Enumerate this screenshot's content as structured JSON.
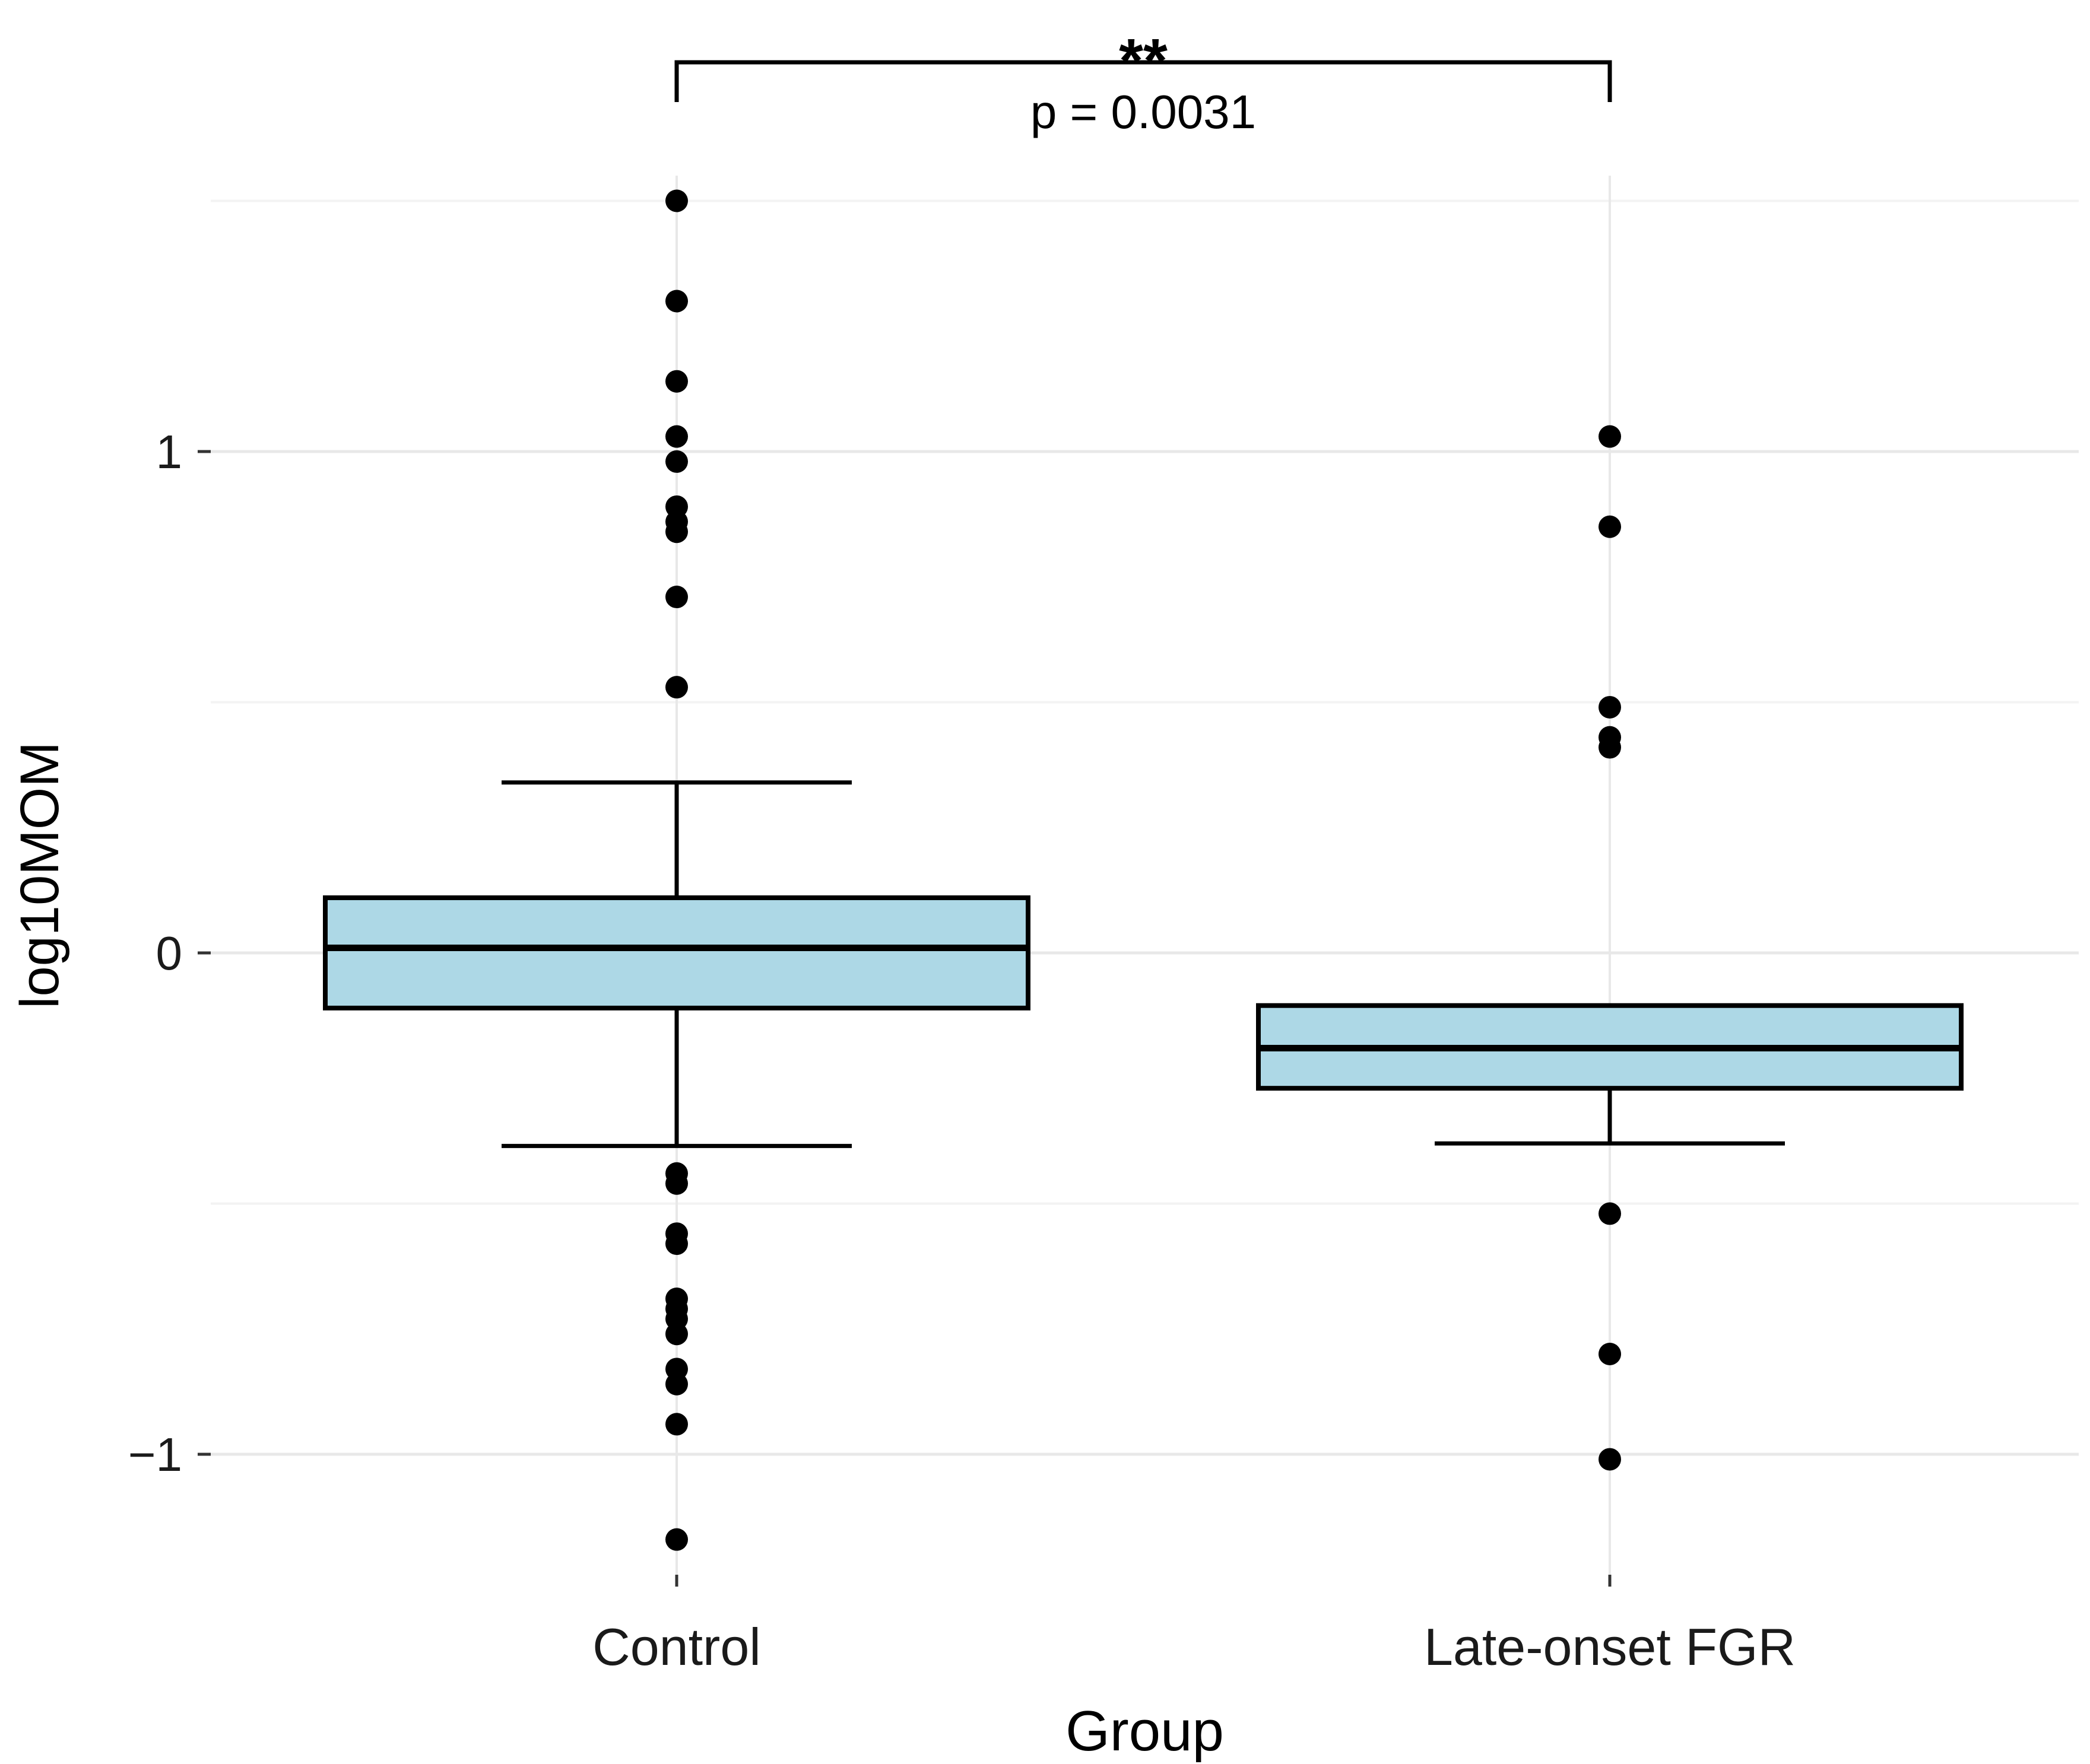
{
  "chart_data": {
    "type": "boxplot",
    "title": "",
    "xlabel": "Group",
    "ylabel": "log10MOM",
    "categories": [
      "Control",
      "Late-onset FGR"
    ],
    "yticks": [
      1,
      0,
      -1
    ],
    "ytick_labels": [
      "1",
      "0",
      "−1"
    ],
    "minor_ticks": [
      1.5,
      0.5,
      -0.5
    ],
    "ylim": [
      -1.24,
      1.55
    ],
    "grid": "major+minor",
    "legend": "none",
    "boxes": [
      {
        "group": "Control",
        "q1": -0.11,
        "median": 0.01,
        "q3": 0.11,
        "whisker_low": -0.385,
        "whisker_high": 0.34,
        "outliers_high": [
          1.5,
          1.3,
          1.14,
          1.03,
          0.98,
          0.89,
          0.86,
          0.84,
          0.71,
          0.53
        ],
        "outliers_low": [
          -0.44,
          -0.46,
          -0.56,
          -0.58,
          -0.69,
          -0.71,
          -0.73,
          -0.76,
          -0.83,
          -0.86,
          -0.94,
          -1.17
        ]
      },
      {
        "group": "Late-onset FGR",
        "q1": -0.27,
        "median": -0.19,
        "q3": -0.105,
        "whisker_low": -0.38,
        "whisker_high": -0.105,
        "outliers_high": [
          1.03,
          0.85,
          0.49,
          0.43,
          0.41
        ],
        "outliers_low": [
          -0.52,
          -0.8,
          -1.01
        ]
      }
    ],
    "annotations": {
      "stars": "**",
      "p_label": "p = 0.0031"
    },
    "colors": {
      "box_fill": "#ADD8E6",
      "stroke": "#000000",
      "point": "#000000",
      "grid_major": "#E8E8E8",
      "grid_minor": "#F3F3F3",
      "background": "#FFFFFF",
      "text": "#000000",
      "tick_text": "#1A1A1A"
    }
  }
}
